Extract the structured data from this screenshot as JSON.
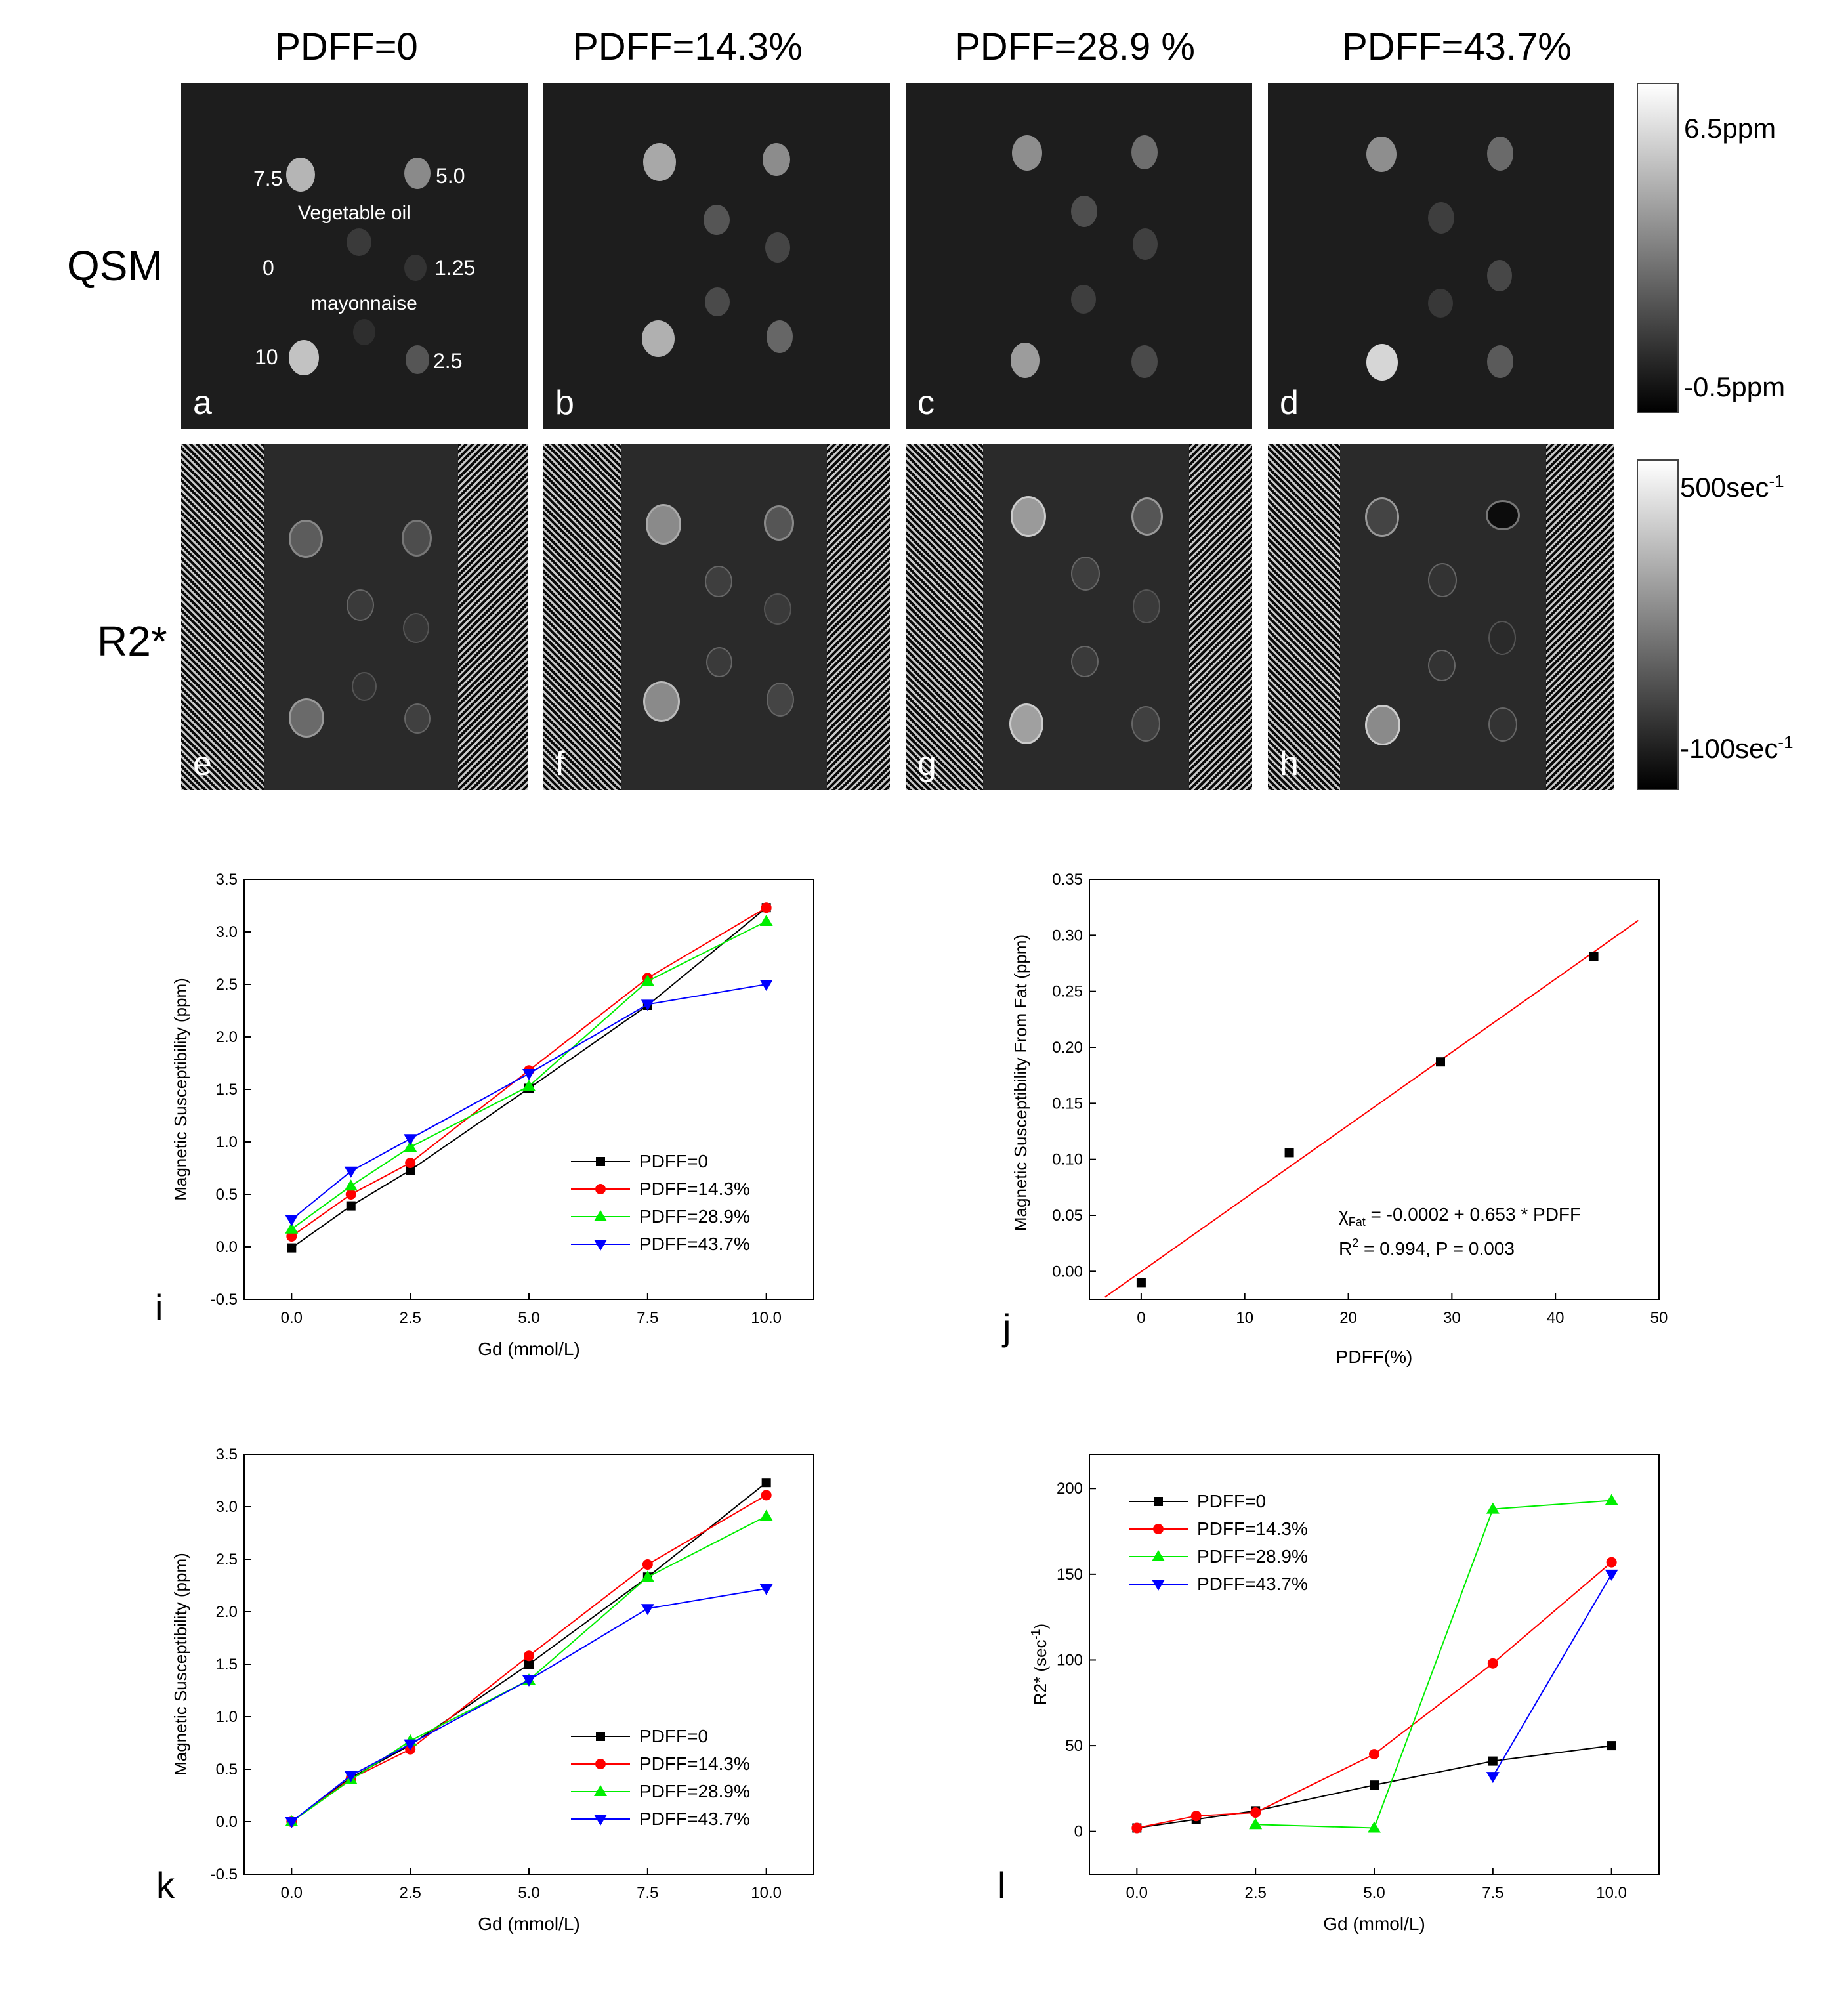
{
  "figure": {
    "columns": [
      "PDFF=0",
      "PDFF=14.3%",
      "PDFF=28.9 %",
      "PDFF=43.7%"
    ],
    "rows": [
      "QSM",
      "R2*"
    ],
    "qsm_panel_labels": [
      "a",
      "b",
      "c",
      "d"
    ],
    "r2_panel_labels": [
      "e",
      "f",
      "g",
      "h"
    ],
    "annotations": {
      "c75": "7.5",
      "c50": "5.0",
      "veg": "Vegetable oil",
      "c0": "0",
      "c125": "1.25",
      "mayo": "mayonnaise",
      "c10": "10",
      "c25": "2.5"
    },
    "colorbar_qsm": {
      "max": "6.5ppm",
      "min": "-0.5ppm"
    },
    "colorbar_r2": {
      "max": "500sec",
      "max_sup": "-1",
      "min": "-100sec",
      "min_sup": "-1"
    }
  },
  "chart_data": [
    {
      "type": "line",
      "panel": "i",
      "xlabel": "Gd (mmol/L)",
      "ylabel": "Magnetic Susceptibility (ppm)",
      "xlim": [
        -1,
        11
      ],
      "ylim": [
        -0.5,
        3.5
      ],
      "xticks": [
        0.0,
        2.5,
        5.0,
        7.5,
        10.0
      ],
      "xtick_labels": [
        "0.0",
        "2.5",
        "5.0",
        "7.5",
        "10.0"
      ],
      "yticks": [
        -0.5,
        0.0,
        0.5,
        1.0,
        1.5,
        2.0,
        2.5,
        3.0,
        3.5
      ],
      "ytick_labels": [
        "-0.5",
        "0.0",
        "0.5",
        "1.0",
        "1.5",
        "2.0",
        "2.5",
        "3.0",
        "3.5"
      ],
      "x": [
        0,
        1.25,
        2.5,
        5,
        7.5,
        10
      ],
      "legend_position": "lower-right",
      "series": [
        {
          "name": "PDFF=0",
          "color": "#000000",
          "marker": "square",
          "values": [
            -0.01,
            0.39,
            0.73,
            1.51,
            2.3,
            3.23
          ]
        },
        {
          "name": "PDFF=14.3%",
          "color": "#ff0000",
          "marker": "circle",
          "values": [
            0.1,
            0.5,
            0.8,
            1.68,
            2.56,
            3.23
          ]
        },
        {
          "name": "PDFF=28.9%",
          "color": "#00ee00",
          "marker": "triangle-up",
          "values": [
            0.17,
            0.58,
            0.95,
            1.53,
            2.53,
            3.1
          ]
        },
        {
          "name": "PDFF=43.7%",
          "color": "#0000ff",
          "marker": "triangle-down",
          "values": [
            0.26,
            0.72,
            1.03,
            1.65,
            2.31,
            2.5
          ]
        }
      ]
    },
    {
      "type": "scatter",
      "panel": "j",
      "xlabel": "PDFF(%)",
      "ylabel": "Magnetic Susceptibility From Fat (ppm)",
      "xlim": [
        -5,
        50
      ],
      "ylim": [
        -0.025,
        0.35
      ],
      "xticks": [
        0,
        10,
        20,
        30,
        40,
        50
      ],
      "xtick_labels": [
        "0",
        "10",
        "20",
        "30",
        "40",
        "50"
      ],
      "yticks": [
        0.0,
        0.05,
        0.1,
        0.15,
        0.2,
        0.25,
        0.3,
        0.35
      ],
      "ytick_labels": [
        "0.00",
        "0.05",
        "0.10",
        "0.15",
        "0.20",
        "0.25",
        "0.30",
        "0.35"
      ],
      "x": [
        0,
        14.3,
        28.9,
        43.7
      ],
      "series": [
        {
          "name": "data",
          "color": "#000000",
          "marker": "square",
          "values": [
            -0.01,
            0.106,
            0.187,
            0.281
          ]
        }
      ],
      "fit": {
        "intercept": -0.0002,
        "slope": 0.00653,
        "x_range": [
          -3.5,
          48
        ],
        "color": "#ff0000"
      },
      "equation_chi": "χ",
      "equation_sub": "Fat",
      "equation_rest": " = -0.0002 + 0.653 * PDFF",
      "stats_r": "R",
      "stats_sup": "2",
      "stats_rest": " = 0.994, P = 0.003"
    },
    {
      "type": "line",
      "panel": "k",
      "xlabel": "Gd (mmol/L)",
      "ylabel": "Magnetic Susceptibility (ppm)",
      "xlim": [
        -1,
        11
      ],
      "ylim": [
        -0.5,
        3.5
      ],
      "xticks": [
        0.0,
        2.5,
        5.0,
        7.5,
        10.0
      ],
      "xtick_labels": [
        "0.0",
        "2.5",
        "5.0",
        "7.5",
        "10.0"
      ],
      "yticks": [
        -0.5,
        0.0,
        0.5,
        1.0,
        1.5,
        2.0,
        2.5,
        3.0,
        3.5
      ],
      "ytick_labels": [
        "-0.5",
        "0.0",
        "0.5",
        "1.0",
        "1.5",
        "2.0",
        "2.5",
        "3.0",
        "3.5"
      ],
      "x": [
        0,
        1.25,
        2.5,
        5,
        7.5,
        10
      ],
      "legend_position": "lower-right",
      "series": [
        {
          "name": "PDFF=0",
          "color": "#000000",
          "marker": "square",
          "values": [
            0.0,
            0.42,
            0.73,
            1.5,
            2.33,
            3.23
          ]
        },
        {
          "name": "PDFF=14.3%",
          "color": "#ff0000",
          "marker": "circle",
          "values": [
            0.0,
            0.41,
            0.69,
            1.58,
            2.45,
            3.11
          ]
        },
        {
          "name": "PDFF=28.9%",
          "color": "#00ee00",
          "marker": "triangle-up",
          "values": [
            0.0,
            0.4,
            0.77,
            1.35,
            2.33,
            2.91
          ]
        },
        {
          "name": "PDFF=43.7%",
          "color": "#0000ff",
          "marker": "triangle-down",
          "values": [
            0.0,
            0.44,
            0.74,
            1.35,
            2.03,
            2.22
          ]
        }
      ]
    },
    {
      "type": "line",
      "panel": "l",
      "xlabel": "Gd (mmol/L)",
      "ylabel": "R2* (sec",
      "ylabel_sup": "-1",
      "ylabel_close": ")",
      "xlim": [
        -1,
        11
      ],
      "ylim": [
        -25,
        220
      ],
      "xticks": [
        0.0,
        2.5,
        5.0,
        7.5,
        10.0
      ],
      "xtick_labels": [
        "0.0",
        "2.5",
        "5.0",
        "7.5",
        "10.0"
      ],
      "yticks": [
        0,
        50,
        100,
        150,
        200
      ],
      "ytick_labels": [
        "0",
        "50",
        "100",
        "150",
        "200"
      ],
      "x": [
        0,
        1.25,
        2.5,
        5,
        7.5,
        10
      ],
      "legend_position": "top-left",
      "series": [
        {
          "name": "PDFF=0",
          "color": "#000000",
          "marker": "square",
          "values": [
            2,
            7,
            12,
            27,
            41,
            50
          ]
        },
        {
          "name": "PDFF=14.3%",
          "color": "#ff0000",
          "marker": "circle",
          "values": [
            2,
            9,
            11,
            45,
            98,
            157
          ]
        },
        {
          "name": "PDFF=28.9%",
          "color": "#00ee00",
          "marker": "triangle-up",
          "values": [
            null,
            null,
            4,
            2,
            188,
            193
          ]
        },
        {
          "name": "PDFF=43.7%",
          "color": "#0000ff",
          "marker": "triangle-down",
          "values": [
            null,
            null,
            null,
            null,
            32,
            150
          ]
        }
      ]
    }
  ]
}
